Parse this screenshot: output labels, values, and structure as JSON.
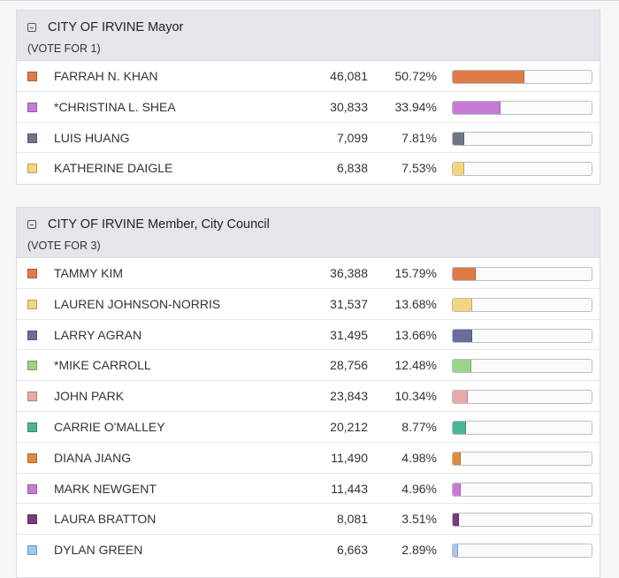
{
  "contests": [
    {
      "title": "CITY OF IRVINE Mayor",
      "vote_for": "(VOTE FOR 1)",
      "candidates": [
        {
          "name": "FARRAH N. KHAN",
          "votes": "46,081",
          "percent": "50.72%",
          "share": 0.5072,
          "color": "#e07b45",
          "leading": true
        },
        {
          "name": "*CHRISTINA L. SHEA",
          "votes": "30,833",
          "percent": "33.94%",
          "share": 0.3394,
          "color": "#c77ad6",
          "leading": true
        },
        {
          "name": "LUIS HUANG",
          "votes": "7,099",
          "percent": "7.81%",
          "share": 0.0781,
          "color": "#6d7884",
          "leading": false
        },
        {
          "name": "KATHERINE DAIGLE",
          "votes": "6,838",
          "percent": "7.53%",
          "share": 0.0753,
          "color": "#f2d67e",
          "leading": false
        }
      ]
    },
    {
      "title": "CITY OF IRVINE Member, City Council",
      "vote_for": "(VOTE FOR 3)",
      "candidates": [
        {
          "name": "TAMMY KIM",
          "votes": "36,388",
          "percent": "15.79%",
          "share": 0.1579,
          "color": "#e07b45",
          "leading": false
        },
        {
          "name": "LAUREN JOHNSON-NORRIS",
          "votes": "31,537",
          "percent": "13.68%",
          "share": 0.1368,
          "color": "#f2d67e",
          "leading": false
        },
        {
          "name": "LARRY AGRAN",
          "votes": "31,495",
          "percent": "13.66%",
          "share": 0.1366,
          "color": "#6a6c9c",
          "leading": false
        },
        {
          "name": "*MIKE CARROLL",
          "votes": "28,756",
          "percent": "12.48%",
          "share": 0.1248,
          "color": "#9ad389",
          "leading": false
        },
        {
          "name": "JOHN PARK",
          "votes": "23,843",
          "percent": "10.34%",
          "share": 0.1034,
          "color": "#e8aaa7",
          "leading": false
        },
        {
          "name": "CARRIE O'MALLEY",
          "votes": "20,212",
          "percent": "8.77%",
          "share": 0.0877,
          "color": "#4bb597",
          "leading": false
        },
        {
          "name": "DIANA JIANG",
          "votes": "11,490",
          "percent": "4.98%",
          "share": 0.0498,
          "color": "#e08a3c",
          "leading": false
        },
        {
          "name": "MARK NEWGENT",
          "votes": "11,443",
          "percent": "4.96%",
          "share": 0.0496,
          "color": "#c77ad6",
          "leading": false
        },
        {
          "name": "LAURA BRATTON",
          "votes": "8,081",
          "percent": "3.51%",
          "share": 0.0351,
          "color": "#7a3a7a",
          "leading": false
        },
        {
          "name": "DYLAN GREEN",
          "votes": "6,663",
          "percent": "2.89%",
          "share": 0.0289,
          "color": "#a3c7ec",
          "leading": false
        }
      ]
    }
  ]
}
